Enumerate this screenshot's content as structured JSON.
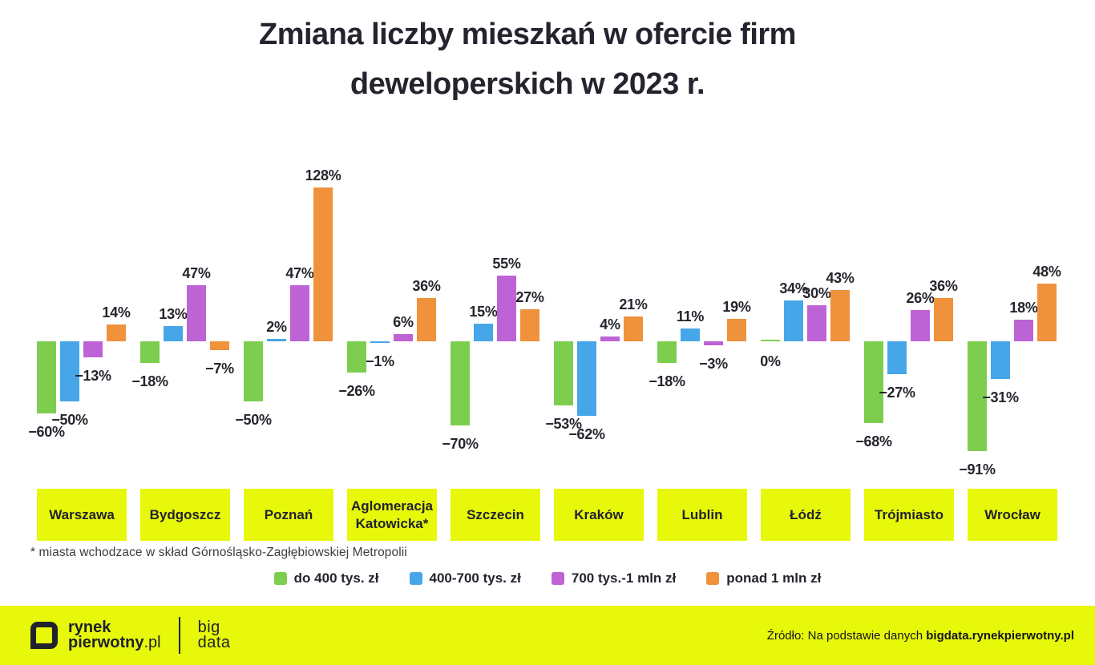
{
  "title": {
    "line1": "Zmiana liczby mieszkań w ofercie firm",
    "line2": "deweloperskich w 2023 r."
  },
  "footnote": "* miasta wchodzace w skład Górnośląsko-Zagłębiowskiej Metropolii",
  "colors": {
    "accent_yellow": "#E7F80A",
    "text_dark": "#23242D",
    "green": "#7DCE4F",
    "blue": "#47A6E8",
    "purple": "#BD63D5",
    "orange": "#F0913C"
  },
  "chart_data": {
    "type": "bar",
    "title": "Zmiana liczby mieszkań w ofercie firm deweloperskich w 2023 r.",
    "unit": "%",
    "grid": false,
    "legend_position": "bottom",
    "ylim": [
      -100,
      140
    ],
    "category_label_background": "#E7F80A",
    "categories": [
      "Warszawa",
      "Bydgoszcz",
      "Poznań",
      "Aglomeracja Katowicka*",
      "Szczecin",
      "Kraków",
      "Lublin",
      "Łódź",
      "Trójmiasto",
      "Wrocław"
    ],
    "series": [
      {
        "name": "do 400 tys. zł",
        "color": "#7DCE4F",
        "values": [
          -60,
          -18,
          -50,
          -26,
          -70,
          -53,
          -18,
          0,
          -68,
          -91
        ],
        "labels": [
          "−60%",
          "−18%",
          "−50%",
          "−26%",
          "−70%",
          "−53%",
          "−18%",
          "0%",
          "−68%",
          "−91%"
        ]
      },
      {
        "name": "400-700 tys. zł",
        "color": "#47A6E8",
        "values": [
          -50,
          13,
          2,
          -1,
          15,
          -62,
          11,
          34,
          -27,
          -31
        ],
        "labels": [
          "−50%",
          "13%",
          "2%",
          "−1%",
          "15%",
          "−62%",
          "11%",
          "34%",
          "−27%",
          "−31%"
        ]
      },
      {
        "name": "700 tys.-1 mln zł",
        "color": "#BD63D5",
        "values": [
          -13,
          47,
          47,
          6,
          55,
          4,
          -3,
          30,
          26,
          18
        ],
        "labels": [
          "−13%",
          "47%",
          "47%",
          "6%",
          "55%",
          "4%",
          "−3%",
          "30%",
          "26%",
          "18%"
        ]
      },
      {
        "name": "ponad 1 mln zł",
        "color": "#F0913C",
        "values": [
          14,
          -7,
          128,
          36,
          27,
          21,
          19,
          43,
          36,
          48
        ],
        "labels": [
          "14%",
          "−7%",
          "128%",
          "36%",
          "27%",
          "21%",
          "19%",
          "43%",
          "36%",
          "48%"
        ]
      }
    ]
  },
  "footer": {
    "background": "#E7F80A",
    "logo_line1": "rynek",
    "logo_line2_bold": "pierwotny",
    "logo_line2_light": ".pl",
    "bigdata_line1": "big",
    "bigdata_line2": "data",
    "source_prefix": "Źródło: Na podstawie danych ",
    "source_bold": "bigdata.rynekpierwotny.pl"
  }
}
